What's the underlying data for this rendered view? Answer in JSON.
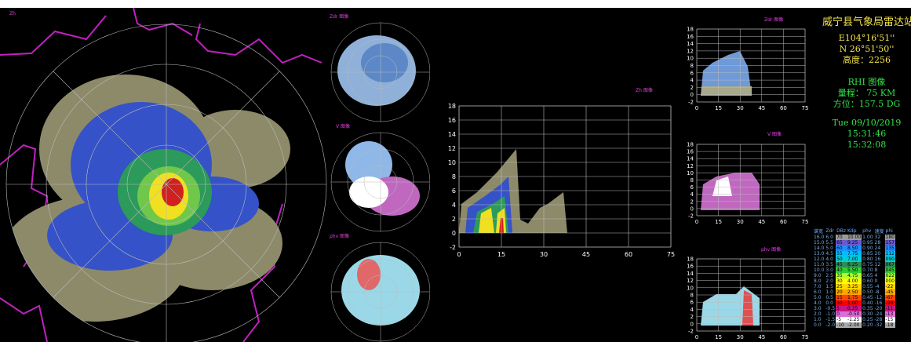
{
  "left": {
    "ppi_label": "Zh",
    "zdr_label": "Zdr 图像",
    "v_label": "V 图像",
    "phv_label": "phv 图像"
  },
  "right": {
    "rhi_zh_label": "Zh 图像",
    "zdr_label": "Zdr 图像",
    "v_label": "V 图像",
    "phv_label": "phv 图像",
    "big_y_ticks": [
      "18",
      "16",
      "14",
      "12",
      "10",
      "8",
      "6",
      "4",
      "2",
      "0",
      "-2"
    ],
    "big_x_ticks": [
      "0",
      "15",
      "30",
      "45",
      "60",
      "75"
    ],
    "small_y_ticks": [
      "18",
      "16",
      "14",
      "12",
      "10",
      "8",
      "6",
      "4",
      "2",
      "0",
      "-2"
    ],
    "small_x_ticks": [
      "0",
      "15",
      "30",
      "45",
      "60",
      "75"
    ],
    "info": {
      "station": "威宁县气象局雷达站",
      "lon": "E104°16'51''",
      "lat": "N 26°51'50''",
      "height": "高度：2256",
      "mode": "RHI 图像",
      "range": "量程：  75  KM",
      "azimuth": "方位：157.5 DG",
      "date": "Tue 09/10/2019",
      "time1": "15:31:46",
      "time2": "15:32:08"
    },
    "legend": {
      "headers": [
        "谱宽",
        "Zdr",
        "DBz",
        "Kdp",
        "phv",
        "速度",
        "phi"
      ],
      "rows": [
        [
          "16.0",
          "6.0",
          "70",
          "10.00",
          "1.00",
          "32",
          "180"
        ],
        [
          "15.0",
          "5.5",
          "65",
          "9.25",
          "0.95",
          "28",
          "157"
        ],
        [
          "14.0",
          "5.0",
          "60",
          "8.50",
          "0.90",
          "24",
          "135"
        ],
        [
          "13.0",
          "4.5",
          "55",
          "7.75",
          "0.85",
          "20",
          "112"
        ],
        [
          "12.0",
          "4.0",
          "50",
          "7.00",
          "0.80",
          "16",
          "090"
        ],
        [
          "11.0",
          "3.5",
          "45",
          "6.25",
          "0.75",
          "12",
          "067"
        ],
        [
          "10.0",
          "3.0",
          "40",
          "5.50",
          "0.70",
          "8",
          "045"
        ],
        [
          "9.0",
          "2.5",
          "35",
          "4.75",
          "0.65",
          "4",
          "022"
        ],
        [
          "8.0",
          "2.0",
          "30",
          "4.00",
          "0.60",
          "0",
          "000"
        ],
        [
          "7.0",
          "1.5",
          "25",
          "3.25",
          "0.55",
          "-4",
          "-22"
        ],
        [
          "6.0",
          "1.0",
          "20",
          "2.50",
          "0.50",
          "-8",
          "-45"
        ],
        [
          "5.0",
          "0.5",
          "15",
          "1.75",
          "0.45",
          "-12",
          "-67"
        ],
        [
          "4.0",
          "0.0",
          "10",
          "1.00",
          "0.40",
          "-16",
          "-90"
        ],
        [
          "3.0",
          "-0.5",
          "5",
          "0.25",
          "0.35",
          "-20",
          "-11"
        ],
        [
          "2.0",
          "-1.0",
          "0",
          "-0.50",
          "0.30",
          "-24",
          "-13"
        ],
        [
          "1.0",
          "-1.5",
          "-5",
          "-1.25",
          "0.25",
          "-28",
          "-15"
        ],
        [
          "0.0",
          "-2.0",
          "-10",
          "-2.00",
          "0.20",
          "-32",
          "-18"
        ]
      ],
      "colors": [
        "#9a9a9a",
        "#6a5acd",
        "#1e90ff",
        "#00bfff",
        "#00ced1",
        "#2e8b57",
        "#32cd32",
        "#adff2f",
        "#ffff00",
        "#ffd700",
        "#ffa500",
        "#ff4500",
        "#ff0000",
        "#c71585",
        "#da70d6",
        "#ffffff",
        "#aaaaaa"
      ]
    }
  }
}
